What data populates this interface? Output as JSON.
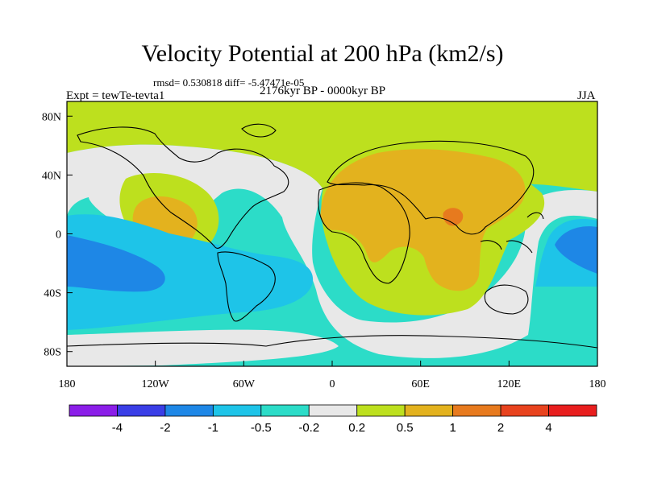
{
  "chart_data": {
    "type": "filled-contour-map",
    "title": "Velocity Potential at 200 hPa (km2/s)",
    "stats_line": "rmsd= 0.530818 diff= -5.47471e-05",
    "subtitle_center": "2176kyr BP - 0000kyr BP",
    "subtitle_left": "Expt = tewTe-tevta1",
    "subtitle_right": "JJA",
    "x_ticks": [
      "180",
      "120W",
      "60W",
      "0",
      "60E",
      "120E",
      "180"
    ],
    "y_ticks": [
      "80N",
      "40N",
      "0",
      "40S",
      "80S"
    ],
    "lon_range": [
      -180,
      180
    ],
    "lat_range": [
      -90,
      90
    ],
    "colorbar": {
      "levels": [
        "-4",
        "-2",
        "-1",
        "-0.5",
        "-0.2",
        "0.2",
        "0.5",
        "1",
        "2",
        "4"
      ],
      "colors": [
        "#8b1ee8",
        "#3a3ee6",
        "#1e87e6",
        "#1ec4e8",
        "#2cdcc8",
        "#e8e8e8",
        "#bde01e",
        "#e3b21e",
        "#e77a1e",
        "#e8431e",
        "#e81e1e"
      ]
    },
    "fill_colors": {
      "ocean_ring": "#2cdcc8",
      "neutral": "#e8e8e8",
      "positive_weak": "#bde01e",
      "positive_mid": "#e3b21e",
      "positive_high": "#e77a1e",
      "negative_mid": "#1ec4e8",
      "negative_strong": "#1e87e6"
    }
  }
}
